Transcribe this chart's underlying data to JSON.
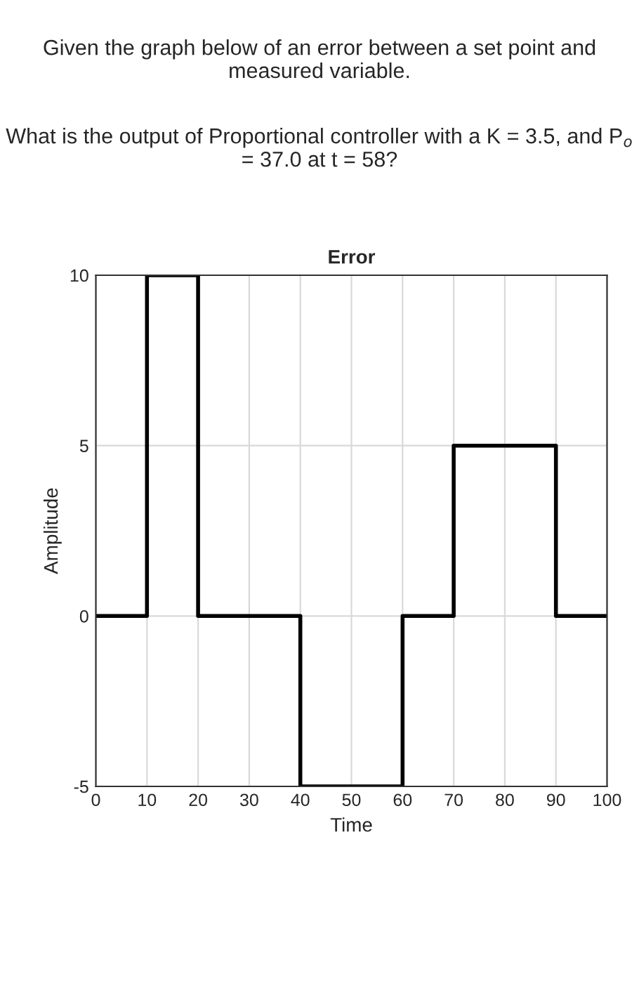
{
  "chart_data": {
    "type": "step",
    "title": "Error",
    "xlabel": "Time",
    "ylabel": "Amplitude",
    "annotations": [
      "Given the graph below of an error between a set point and measured variable.",
      "What is the output of Proportional controller with a K = 3.5, and P$_{o}$ = 37.0 at t = 58?"
    ],
    "x": [
      0,
      10,
      20,
      40,
      60,
      70,
      90,
      100
    ],
    "series": [
      {
        "color": "#000000",
        "values": [
          0,
          10,
          0,
          -5,
          0,
          5,
          0,
          0
        ]
      }
    ],
    "xlim": [
      0,
      100
    ],
    "xticks": [
      0,
      10,
      20,
      30,
      40,
      50,
      60,
      70,
      80,
      90,
      100
    ],
    "ylim": [
      -5,
      10
    ],
    "yticks": [
      -5,
      0,
      5,
      10
    ],
    "grid": true
  }
}
